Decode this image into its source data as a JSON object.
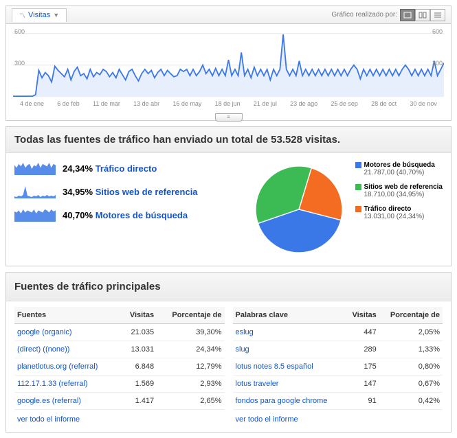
{
  "colors": {
    "link": "#1155cc",
    "line": "#3b78e7",
    "fill": "#cfe0fb",
    "green": "#3cba54",
    "orange": "#f36c21",
    "blue": "#3b78e7",
    "grid": "#e6e6e6",
    "text_muted": "#888888"
  },
  "header": {
    "tab_label": "Visitas",
    "credit": "Gráfico realizado por:"
  },
  "chart": {
    "ylim": [
      0,
      650
    ],
    "yticks": [
      300,
      600
    ],
    "x_labels": [
      "4 de ene",
      "6 de feb",
      "11 de mar",
      "13 de abr",
      "16 de may",
      "18 de jun",
      "21 de jul",
      "23 de ago",
      "25 de sep",
      "28 de oct",
      "30 de nov"
    ],
    "values": [
      5,
      5,
      5,
      5,
      5,
      5,
      5,
      20,
      250,
      180,
      230,
      200,
      140,
      290,
      250,
      220,
      190,
      260,
      160,
      240,
      280,
      200,
      220,
      170,
      260,
      190,
      230,
      210,
      260,
      240,
      190,
      230,
      180,
      260,
      210,
      160,
      240,
      260,
      200,
      150,
      220,
      260,
      220,
      250,
      180,
      230,
      260,
      200,
      250,
      220,
      190,
      200,
      260,
      240,
      260,
      200,
      260,
      200,
      240,
      300,
      220,
      260,
      200,
      270,
      200,
      260,
      200,
      350,
      200,
      260,
      200,
      420,
      200,
      260,
      180,
      280,
      200,
      260,
      200,
      260,
      160,
      260,
      200,
      260,
      590,
      260,
      200,
      260,
      200,
      340,
      200,
      260,
      200,
      260,
      200,
      260,
      200,
      260,
      200,
      260,
      200,
      260,
      200,
      260,
      200,
      260,
      300,
      260,
      170,
      260,
      200,
      260,
      200,
      260,
      200,
      260,
      200,
      260,
      200,
      260,
      200,
      260,
      300,
      260,
      200,
      260,
      200,
      260,
      200,
      260,
      200,
      340,
      200,
      260,
      320
    ]
  },
  "summary": {
    "title": "Todas las fuentes de tráfico han enviado un total de 53.528 visitas.",
    "metrics": [
      {
        "pct": "24,34%",
        "label": "Tráfico directo",
        "spark": [
          8,
          6,
          9,
          7,
          10,
          6,
          8,
          9,
          5,
          8,
          7,
          10,
          6,
          9,
          8,
          7,
          10,
          6,
          9,
          8
        ]
      },
      {
        "pct": "34,95%",
        "label": "Sitios web de referencia",
        "spark": [
          3,
          2,
          4,
          3,
          5,
          18,
          4,
          3,
          2,
          4,
          3,
          5,
          2,
          4,
          3,
          5,
          3,
          4,
          3,
          5
        ]
      },
      {
        "pct": "40,70%",
        "label": "Motores de búsqueda",
        "spark": [
          10,
          9,
          11,
          8,
          12,
          9,
          11,
          10,
          9,
          12,
          8,
          11,
          10,
          9,
          12,
          11,
          9,
          12,
          10,
          11
        ]
      }
    ],
    "legend": [
      {
        "color": "#3b78e7",
        "title": "Motores de búsqueda",
        "detail": "21.787,00 (40,70%)"
      },
      {
        "color": "#3cba54",
        "title": "Sitios web de referencia",
        "detail": "18.710,00 (34,95%)"
      },
      {
        "color": "#f36c21",
        "title": "Tráfico directo",
        "detail": "13.031,00 (24,34%)"
      }
    ],
    "pie": [
      {
        "color": "#3b78e7",
        "fraction": 0.407
      },
      {
        "color": "#3cba54",
        "fraction": 0.3495
      },
      {
        "color": "#f36c21",
        "fraction": 0.2434
      }
    ]
  },
  "sources": {
    "title": "Fuentes de tráfico principales",
    "left": {
      "cols": [
        "Fuentes",
        "Visitas",
        "Porcentaje de"
      ],
      "rows": [
        [
          "google (organic)",
          "21.035",
          "39,30%"
        ],
        [
          "(direct) ((none))",
          "13.031",
          "24,34%"
        ],
        [
          "planetlotus.org (referral)",
          "6.848",
          "12,79%"
        ],
        [
          "112.17.1.33 (referral)",
          "1.569",
          "2,93%"
        ],
        [
          "google.es (referral)",
          "1.417",
          "2,65%"
        ]
      ],
      "view_all": "ver todo el informe"
    },
    "right": {
      "cols": [
        "Palabras clave",
        "Visitas",
        "Porcentaje de"
      ],
      "rows": [
        [
          "eslug",
          "447",
          "2,05%"
        ],
        [
          "slug",
          "289",
          "1,33%"
        ],
        [
          "lotus notes 8.5 español",
          "175",
          "0,80%"
        ],
        [
          "lotus traveler",
          "147",
          "0,67%"
        ],
        [
          "fondos para google chrome",
          "91",
          "0,42%"
        ]
      ],
      "view_all": "ver todo el informe"
    }
  }
}
